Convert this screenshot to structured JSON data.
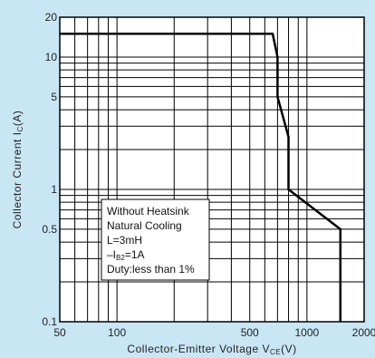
{
  "chart_data": {
    "type": "line",
    "xscale": "log",
    "yscale": "log",
    "xlim": [
      50,
      2000
    ],
    "ylim": [
      0.1,
      20
    ],
    "grid": true,
    "x_ticks": [
      {
        "value": 50,
        "label": "50"
      },
      {
        "value": 100,
        "label": "100"
      },
      {
        "value": 500,
        "label": "500"
      },
      {
        "value": 1000,
        "label": "1000"
      },
      {
        "value": 2000,
        "label": "2000"
      }
    ],
    "y_ticks": [
      {
        "value": 0.1,
        "label": "0.1"
      },
      {
        "value": 0.5,
        "label": "0.5"
      },
      {
        "value": 1,
        "label": "1"
      },
      {
        "value": 5,
        "label": "5"
      },
      {
        "value": 10,
        "label": "10"
      },
      {
        "value": 20,
        "label": "20"
      }
    ],
    "xlabel": {
      "main": "Collector-Emitter Voltage V",
      "sub": "CE",
      "unit": "(V)"
    },
    "ylabel": {
      "main": "Collector Current I",
      "sub": "C",
      "unit": "(A)"
    },
    "series": [
      {
        "x": [
          50,
          660,
          700,
          700,
          800,
          800,
          1500,
          1500
        ],
        "y": [
          15,
          15,
          10,
          5,
          2.5,
          1,
          0.5,
          0.1
        ]
      }
    ],
    "annotation": {
      "lines": [
        {
          "text": "Without Heatsink"
        },
        {
          "text": "Natural Cooling"
        },
        {
          "text": "L=3mH"
        },
        {
          "prefix": "–I",
          "sub": "B2",
          "suffix": "=1A"
        },
        {
          "text": "Duty:less than 1%"
        }
      ]
    },
    "colors": {
      "background": "#c9e6f5",
      "plot_area": "#ffffff",
      "grid": "#000000",
      "series": "#000000"
    }
  }
}
